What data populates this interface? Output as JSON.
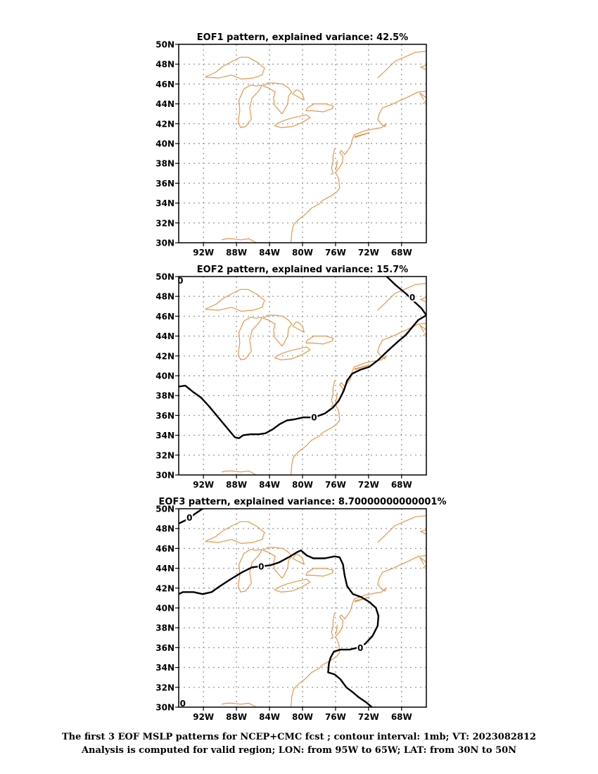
{
  "panels": [
    {
      "title": "EOF1 pattern, explained variance: 42.5%",
      "contours": [],
      "zero_labels": []
    },
    {
      "title": "EOF2 pattern, explained variance: 15.7%",
      "contours": [
        [
          [
            -95,
            38.9
          ],
          [
            -94.2,
            39.0
          ],
          [
            -93.3,
            38.4
          ],
          [
            -92.3,
            37.8
          ],
          [
            -91.3,
            36.9
          ],
          [
            -90.3,
            35.9
          ],
          [
            -89.5,
            35.1
          ],
          [
            -88.7,
            34.3
          ],
          [
            -88.2,
            33.8
          ],
          [
            -87.7,
            33.7
          ],
          [
            -87.2,
            34.0
          ],
          [
            -86.3,
            34.1
          ],
          [
            -85.3,
            34.1
          ],
          [
            -84.5,
            34.2
          ],
          [
            -83.6,
            34.6
          ],
          [
            -82.8,
            35.1
          ],
          [
            -81.9,
            35.5
          ],
          [
            -81.0,
            35.6
          ],
          [
            -79.9,
            35.8
          ],
          [
            -78.6,
            35.8
          ],
          [
            -77.3,
            36.2
          ],
          [
            -76.3,
            36.8
          ],
          [
            -75.6,
            37.5
          ],
          [
            -75.0,
            38.5
          ],
          [
            -74.6,
            39.5
          ],
          [
            -74.0,
            40.2
          ],
          [
            -73.0,
            40.6
          ],
          [
            -71.9,
            40.9
          ],
          [
            -70.8,
            41.6
          ],
          [
            -69.7,
            42.5
          ],
          [
            -68.5,
            43.4
          ],
          [
            -67.5,
            44.1
          ],
          [
            -66.8,
            44.8
          ],
          [
            -66.0,
            45.6
          ],
          [
            -65,
            46.1
          ]
        ],
        [
          [
            -69.8,
            50
          ],
          [
            -68.8,
            49.2
          ],
          [
            -67.5,
            48.3
          ],
          [
            -66.5,
            47.5
          ],
          [
            -65.6,
            46.8
          ],
          [
            -65,
            46.1
          ]
        ],
        [
          [
            -95,
            49.9
          ],
          [
            -94.8,
            49.7
          ],
          [
            -94.5,
            49.4
          ]
        ]
      ],
      "zero_labels": [
        [
          -78.6,
          35.8
        ],
        [
          -66.7,
          47.9
        ],
        [
          -94.8,
          49.6
        ]
      ]
    },
    {
      "title": "EOF3 pattern, explained variance: 8.70000000000001%",
      "contours": [
        [
          [
            -95,
            41.4
          ],
          [
            -94.5,
            41.6
          ],
          [
            -93.2,
            41.6
          ],
          [
            -92.1,
            41.4
          ],
          [
            -91.0,
            41.6
          ],
          [
            -90.0,
            42.2
          ],
          [
            -88.7,
            42.9
          ],
          [
            -87.3,
            43.6
          ],
          [
            -86.1,
            44.1
          ],
          [
            -85.0,
            44.2
          ],
          [
            -83.9,
            44.3
          ],
          [
            -82.8,
            44.6
          ],
          [
            -81.7,
            45.1
          ],
          [
            -80.7,
            45.6
          ],
          [
            -80.2,
            45.8
          ],
          [
            -79.5,
            45.3
          ],
          [
            -78.7,
            45.0
          ],
          [
            -77.3,
            45.0
          ],
          [
            -76.1,
            45.2
          ],
          [
            -75.5,
            45.1
          ],
          [
            -75.1,
            44.4
          ],
          [
            -74.9,
            43.3
          ],
          [
            -74.6,
            42.2
          ],
          [
            -73.9,
            41.4
          ],
          [
            -72.9,
            41.1
          ],
          [
            -71.9,
            40.6
          ],
          [
            -71.1,
            40.0
          ],
          [
            -70.8,
            39.2
          ],
          [
            -70.9,
            38.2
          ],
          [
            -71.5,
            37.2
          ],
          [
            -72.4,
            36.4
          ],
          [
            -73.3,
            36.0
          ],
          [
            -74.3,
            35.8
          ],
          [
            -75.4,
            35.8
          ],
          [
            -76.2,
            35.6
          ],
          [
            -76.6,
            35.0
          ],
          [
            -76.8,
            34.4
          ],
          [
            -76.9,
            33.5
          ],
          [
            -76.1,
            33.3
          ],
          [
            -75.4,
            32.8
          ],
          [
            -74.7,
            32.0
          ],
          [
            -73.9,
            31.5
          ],
          [
            -73.2,
            31.0
          ],
          [
            -72.3,
            30.5
          ],
          [
            -71.6,
            30
          ]
        ],
        [
          [
            -95,
            48.5
          ],
          [
            -94.0,
            48.9
          ],
          [
            -93.0,
            49.5
          ],
          [
            -92.1,
            50
          ]
        ],
        [
          [
            -94.3,
            30
          ],
          [
            -94.6,
            30.3
          ],
          [
            -94.9,
            30.5
          ]
        ]
      ],
      "zero_labels": [
        [
          -85.0,
          44.2
        ],
        [
          -73.0,
          36.0
        ],
        [
          -93.7,
          49.1
        ],
        [
          -94.5,
          30.4
        ]
      ]
    }
  ],
  "zero_label_text": "0",
  "lat_labels": [
    "30N",
    "32N",
    "34N",
    "36N",
    "38N",
    "40N",
    "42N",
    "44N",
    "46N",
    "48N",
    "50N"
  ],
  "lon_labels": [
    "92W",
    "88W",
    "84W",
    "80W",
    "76W",
    "72W",
    "68W"
  ],
  "colors": {
    "coast": "#e8964b",
    "contour": "#000000",
    "grid": "#a0a0a0",
    "frame": "#000000"
  },
  "footer": {
    "line1": "The first 3 EOF MSLP patterns for NCEP+CMC fcst ; contour interval: 1mb; VT: 2023082812",
    "line2": "Analysis is computed for valid region; LON: from 95W to 65W; LAT: from 30N to 50N"
  }
}
